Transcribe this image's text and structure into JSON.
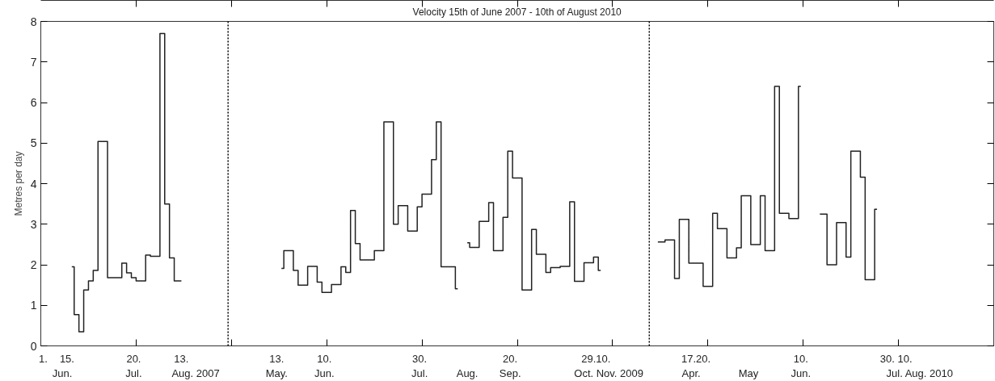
{
  "chart_data": {
    "type": "step",
    "title": "Velocity 15th of June 2007 - 10th of August 2010",
    "ylabel": "Metres per day",
    "ylim": [
      0,
      8
    ],
    "yticks": [
      0,
      1,
      2,
      3,
      4,
      5,
      6,
      7,
      8
    ],
    "categories": [
      "1.",
      null,
      null,
      null,
      "\nJun.",
      "15.",
      null,
      null,
      null,
      null,
      null,
      null,
      null,
      null,
      null,
      null,
      null,
      null,
      null,
      "20.\nJul.",
      null,
      null,
      null,
      null,
      null,
      null,
      null,
      null,
      null,
      "13.",
      null,
      null,
      "\nAug. 2007",
      null,
      null,
      null,
      null,
      null,
      null,
      null,
      null,
      null,
      null,
      null,
      null,
      null,
      null,
      null,
      null,
      "13.\nMay.",
      null,
      null,
      null,
      null,
      null,
      null,
      null,
      null,
      null,
      "10.\nJun.",
      null,
      null,
      null,
      null,
      null,
      null,
      null,
      null,
      null,
      null,
      null,
      null,
      null,
      null,
      null,
      null,
      null,
      null,
      null,
      "30.\nJul.",
      null,
      null,
      null,
      null,
      null,
      null,
      null,
      null,
      null,
      "\nAug.",
      null,
      null,
      null,
      null,
      null,
      null,
      null,
      null,
      "20.\nSep.",
      null,
      null,
      null,
      null,
      null,
      null,
      null,
      null,
      null,
      null,
      null,
      null,
      null,
      null,
      null,
      null,
      null,
      "29.10.",
      null,
      null,
      "\nOct. Nov.  2009",
      null,
      null,
      null,
      null,
      null,
      null,
      null,
      null,
      null,
      null,
      null,
      null,
      null,
      null,
      null,
      null,
      "\nApr.",
      "17.20.",
      null,
      null,
      null,
      null,
      null,
      null,
      null,
      null,
      null,
      null,
      "\nMay",
      null,
      null,
      null,
      null,
      null,
      null,
      null,
      null,
      null,
      null,
      "10.\nJun.",
      null,
      null,
      null,
      null,
      null,
      null,
      null,
      null,
      null,
      null,
      null,
      null,
      null,
      null,
      null,
      null,
      null,
      null,
      null,
      "30. 10.",
      null,
      null,
      null,
      null,
      "\nJul. Aug. 2010",
      null,
      null,
      null,
      null,
      null,
      null,
      null,
      null,
      null,
      null,
      null,
      null,
      null,
      null,
      null
    ],
    "line_style": "solid",
    "series": [
      {
        "color": "#222222",
        "values": [
          null,
          null,
          null,
          null,
          null,
          null,
          1.95,
          0.77,
          0.35,
          1.38,
          1.6,
          1.86,
          5.04,
          5.04,
          1.68,
          1.68,
          1.68,
          2.04,
          1.8,
          1.68,
          1.6,
          1.6,
          2.24,
          2.21,
          2.21,
          7.7,
          3.5,
          2.17,
          1.6,
          1.6,
          null,
          null,
          null,
          null,
          null,
          null,
          null,
          null,
          null,
          null,
          null,
          null,
          null,
          null,
          null,
          null,
          null,
          null,
          null,
          null,
          1.91,
          2.35,
          2.35,
          1.86,
          1.5,
          1.5,
          1.96,
          1.96,
          1.57,
          1.32,
          1.32,
          1.51,
          1.51,
          1.95,
          1.81,
          3.34,
          2.52,
          2.12,
          2.12,
          2.12,
          2.35,
          2.35,
          5.52,
          5.52,
          3.0,
          3.46,
          3.46,
          2.83,
          2.83,
          3.43,
          3.74,
          3.74,
          4.59,
          5.52,
          1.95,
          1.95,
          1.95,
          1.41,
          null,
          2.54,
          2.43,
          2.43,
          3.07,
          3.07,
          3.53,
          2.35,
          2.35,
          3.17,
          4.8,
          4.14,
          4.14,
          1.38,
          1.38,
          2.87,
          2.26,
          2.26,
          1.81,
          1.93,
          1.93,
          1.96,
          1.96,
          3.55,
          1.59,
          1.59,
          2.05,
          2.05,
          2.19,
          1.86,
          null,
          null,
          null,
          null,
          null,
          null,
          null,
          null,
          null,
          null,
          null,
          2.56,
          2.56,
          2.61,
          2.61,
          1.66,
          3.12,
          3.12,
          2.04,
          2.04,
          2.04,
          1.47,
          1.47,
          3.27,
          2.89,
          2.89,
          2.17,
          2.17,
          2.42,
          3.7,
          3.7,
          2.5,
          2.5,
          3.7,
          2.35,
          2.35,
          6.4,
          3.27,
          3.27,
          3.14,
          3.14,
          6.4,
          null,
          null,
          null,
          3.25,
          3.25,
          2.0,
          2.0,
          3.04,
          3.04,
          2.19,
          4.8,
          4.8,
          4.16,
          1.63,
          1.63,
          3.37,
          null,
          null,
          null,
          null,
          null,
          null,
          null,
          null,
          null,
          null,
          null,
          null,
          null,
          null,
          null,
          null,
          null,
          null,
          null,
          null,
          null,
          null,
          null,
          null
        ]
      }
    ]
  }
}
